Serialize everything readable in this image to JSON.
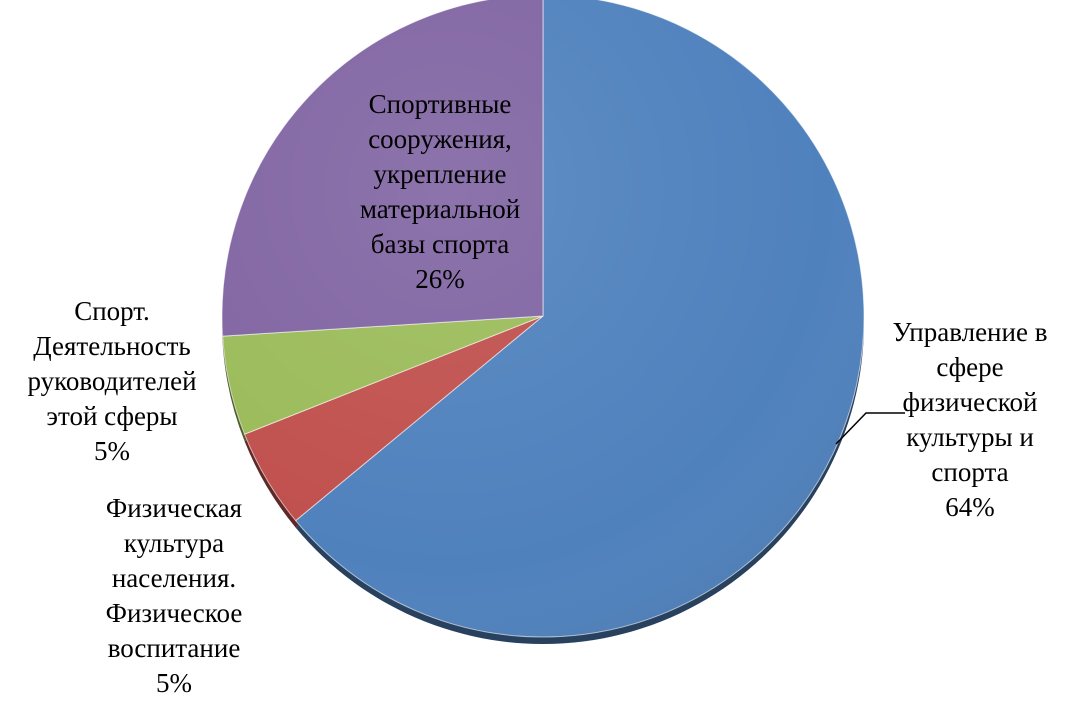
{
  "chart_data": {
    "type": "pie",
    "title": "",
    "start_angle_deg": 0,
    "direction": "clockwise",
    "slices": [
      {
        "label_lines": [
          "Управление в",
          "сфере",
          "физической",
          "культуры и",
          "спорта"
        ],
        "percent_label": "64%",
        "value": 64,
        "color": "#4F81BD",
        "label_position": "outside-right",
        "leader_line": true
      },
      {
        "label_lines": [
          "Физическая",
          "культура",
          "населения.",
          "Физическое",
          "воспитание"
        ],
        "percent_label": "5%",
        "value": 5,
        "color": "#C0504D",
        "label_position": "outside-bottom-left",
        "leader_line": false
      },
      {
        "label_lines": [
          "Спорт.",
          "Деятельность",
          "руководителей",
          "этой сферы"
        ],
        "percent_label": "5%",
        "value": 5,
        "color": "#9BBB59",
        "label_position": "outside-left",
        "leader_line": false
      },
      {
        "label_lines": [
          "Спортивные",
          "сооружения,",
          "укрепление",
          "материальной",
          "базы спорта"
        ],
        "percent_label": "26%",
        "value": 26,
        "color": "#8064A2",
        "label_position": "inside",
        "leader_line": false
      }
    ],
    "legend": "none",
    "style": "3d-bevel"
  }
}
